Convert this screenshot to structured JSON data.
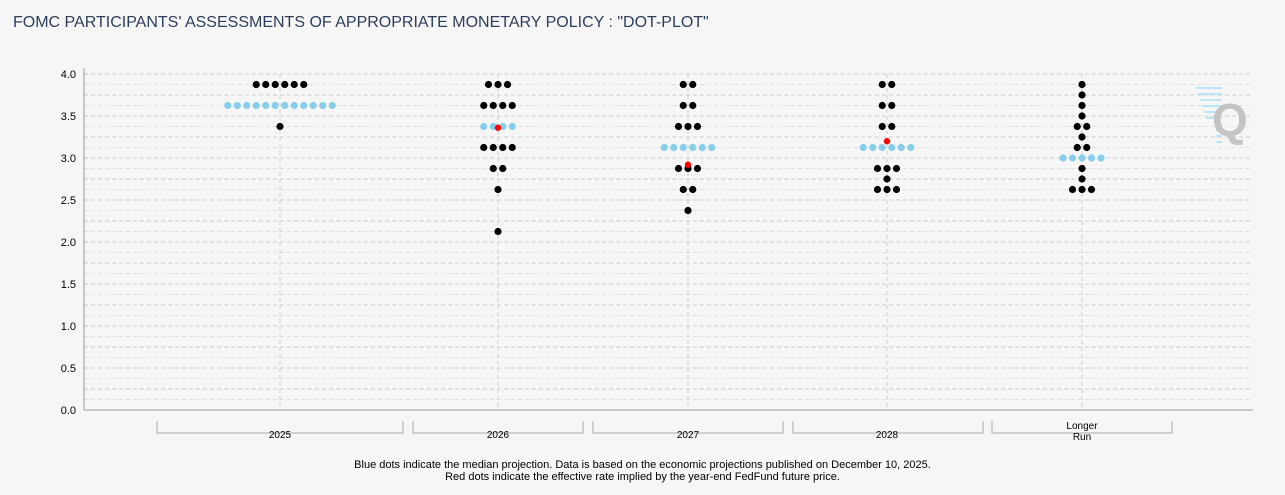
{
  "title": "FOMC PARTICIPANTS' ASSESSMENTS OF APPROPRIATE MONETARY POLICY : \"DOT-PLOT\"",
  "notes": [
    "Blue dots indicate the median projection. Data is based on the economic projections published on December 10, 2025.",
    "Red dots indicate the effective rate implied by the year-end FedFund future price."
  ],
  "colors": {
    "participant": "#000000",
    "median": "#87ceeb",
    "implied": "#ff0000"
  },
  "logo": "Q",
  "chart_data": {
    "type": "scatter",
    "title": "",
    "xlabel": "",
    "ylabel": "",
    "ylim": [
      0,
      4
    ],
    "yticks": [
      "0.0",
      "0.5",
      "1.0",
      "1.5",
      "2.0",
      "2.5",
      "3.0",
      "3.5",
      "4.0"
    ],
    "grid": true,
    "categories": [
      "2025",
      "2026",
      "2027",
      "2028",
      "Longer Run"
    ],
    "category_labels": [
      [
        "2025"
      ],
      [
        "2026"
      ],
      [
        "2027"
      ],
      [
        "2028"
      ],
      [
        "Longer",
        "Run"
      ]
    ],
    "dots": [
      {
        "3.875": 6,
        "3.625": 12,
        "3.375": 1
      },
      {
        "3.875": 3,
        "3.625": 4,
        "3.375": 4,
        "3.125": 4,
        "2.875": 2,
        "2.625": 1,
        "2.125": 1
      },
      {
        "3.875": 2,
        "3.625": 2,
        "3.375": 3,
        "3.125": 6,
        "2.875": 3,
        "2.625": 2,
        "2.375": 1
      },
      {
        "3.875": 2,
        "3.625": 2,
        "3.375": 2,
        "3.125": 6,
        "2.875": 3,
        "2.75": 1,
        "2.625": 3
      },
      {
        "3.875": 1,
        "3.75": 1,
        "3.625": 1,
        "3.5": 1,
        "3.375": 2,
        "3.25": 1,
        "3.125": 2,
        "3.0": 5,
        "2.875": 1,
        "2.75": 1,
        "2.625": 3
      }
    ],
    "median": [
      3.625,
      3.375,
      3.125,
      3.125,
      3.0
    ],
    "implied_rate": [
      null,
      3.36,
      2.92,
      3.2,
      null
    ]
  }
}
